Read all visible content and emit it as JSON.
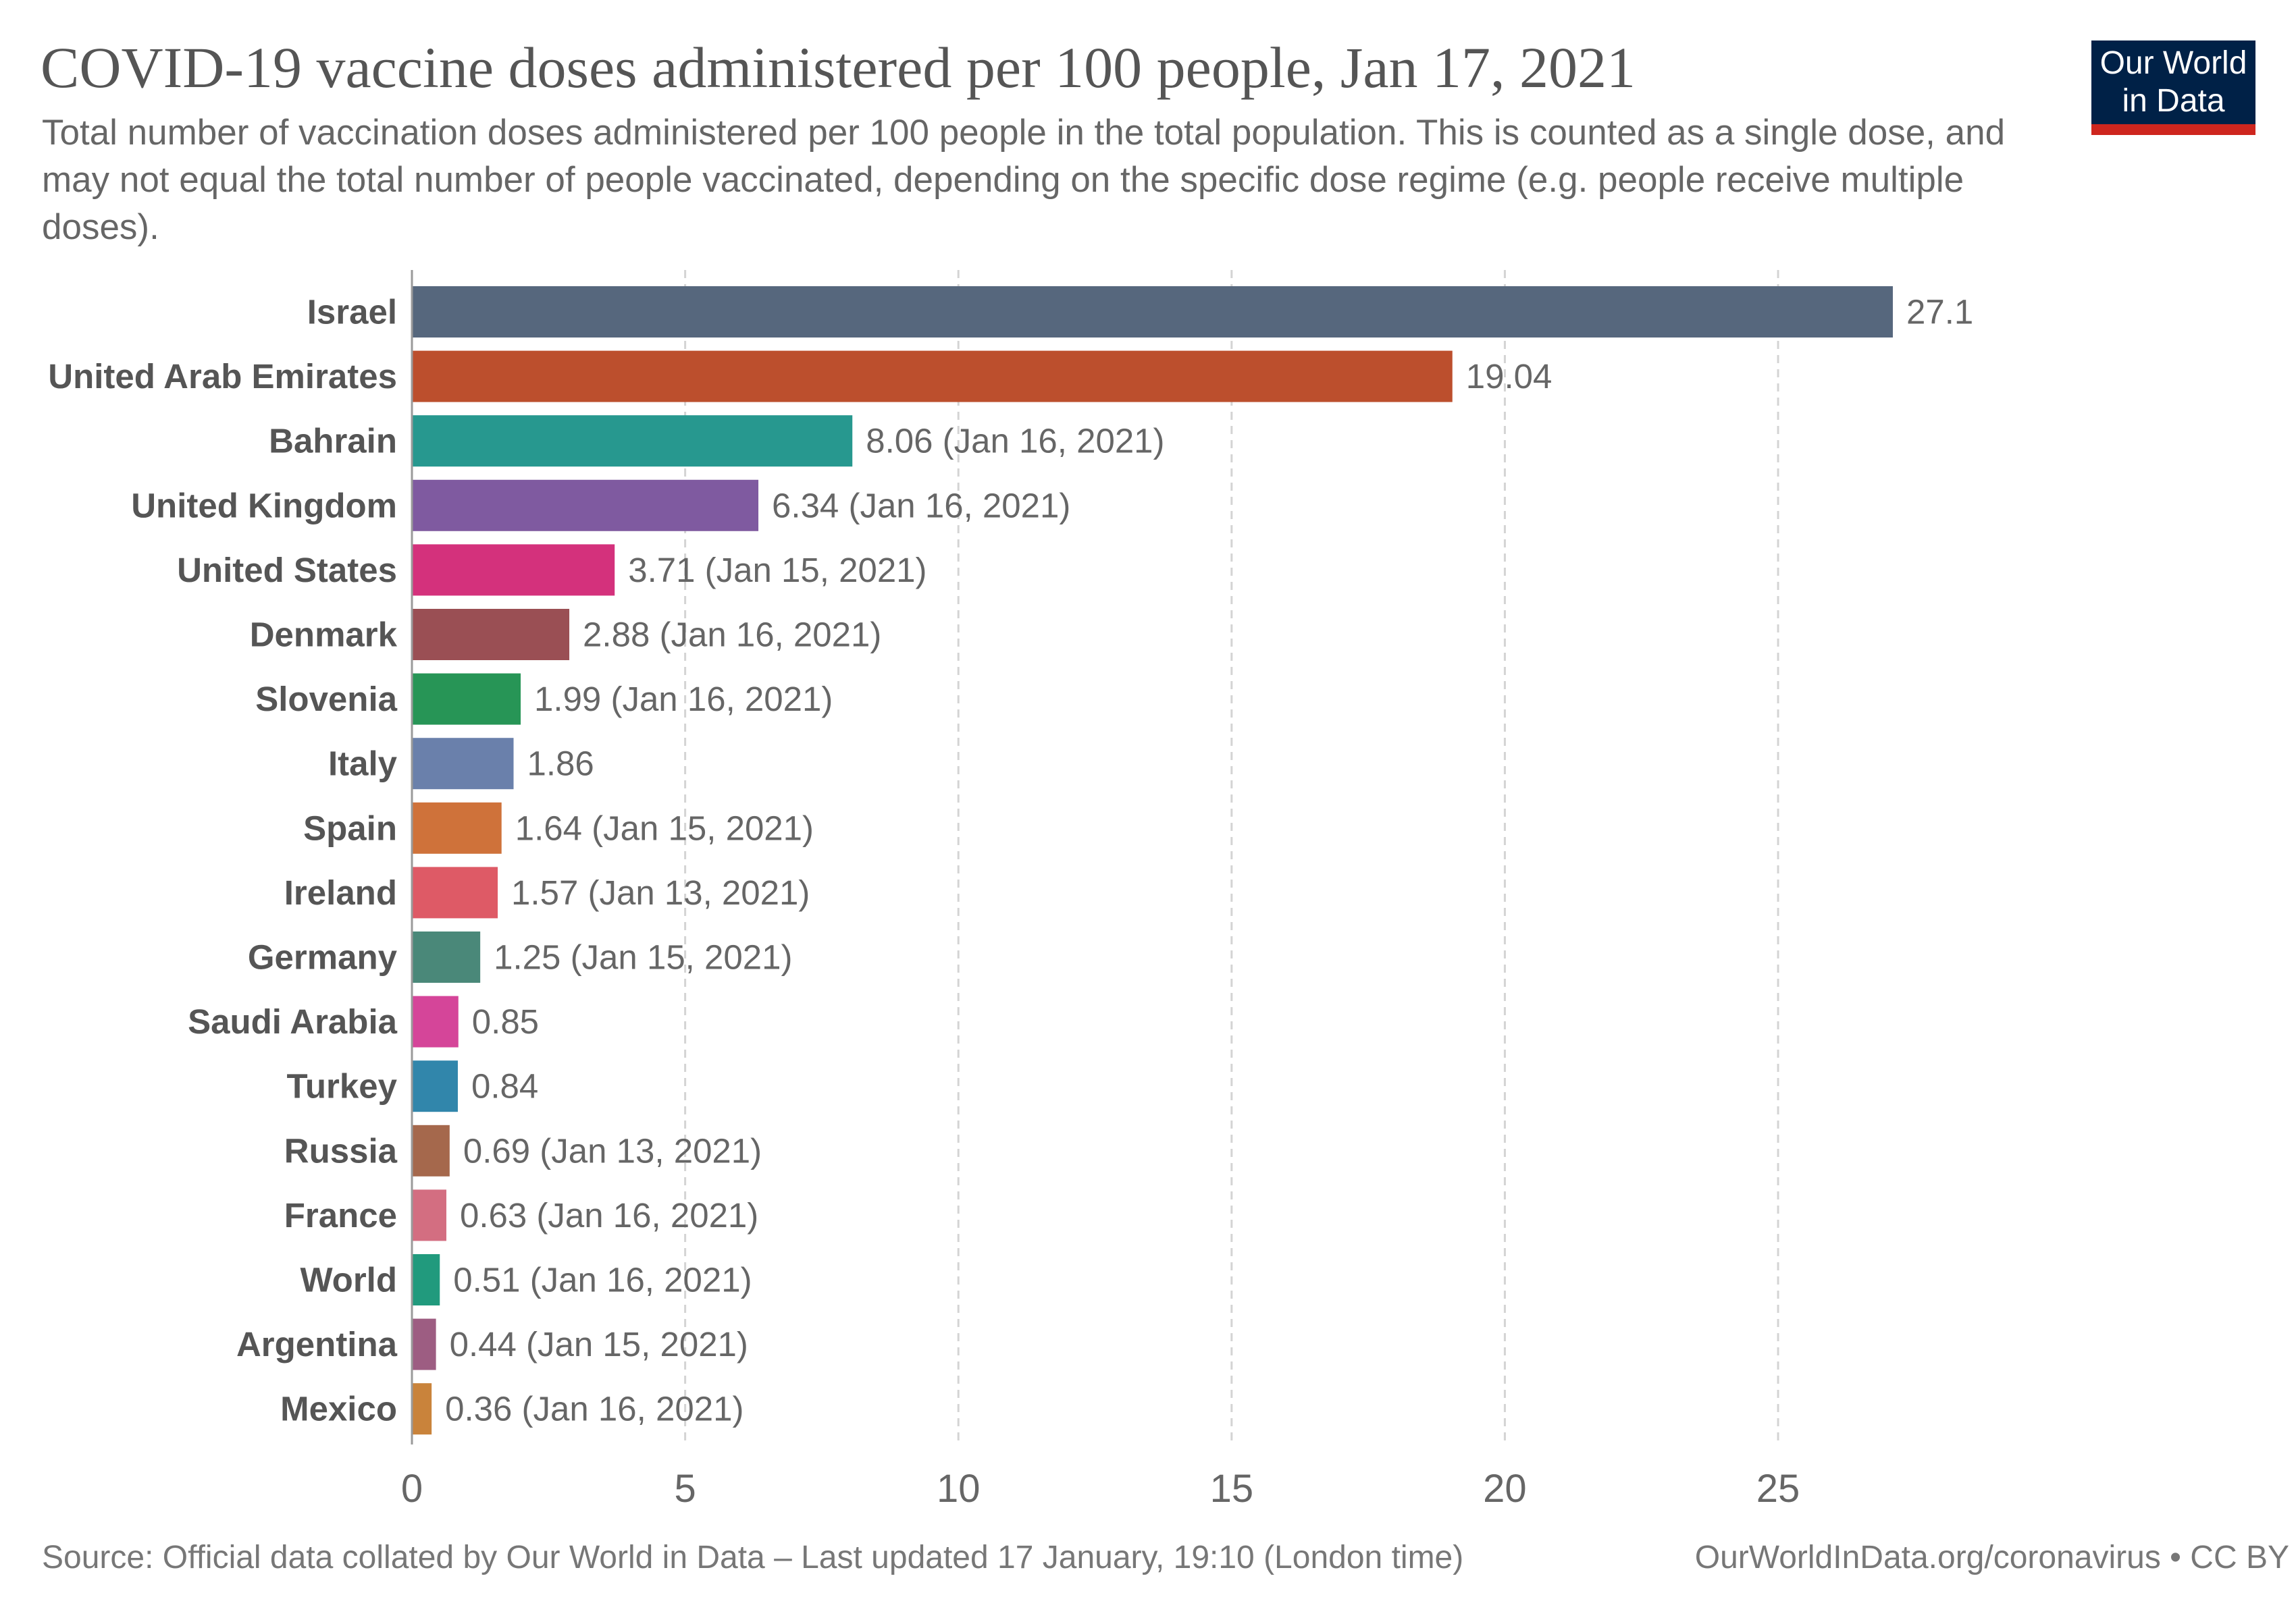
{
  "header": {
    "title": "COVID-19 vaccine doses administered per 100 people, Jan 17, 2021",
    "subtitle": "Total number of vaccination doses administered per 100 people in the total population. This is counted as a single dose, and may not equal the total number of people vaccinated, depending on the specific dose regime (e.g. people receive multiple doses)."
  },
  "logo": {
    "line1": "Our World",
    "line2": "in Data",
    "bg": "#002147",
    "accent": "#ce261e"
  },
  "footer": {
    "source": "Source: Official data collated by Our World in Data – Last updated 17 January, 19:10 (London time)",
    "link": "OurWorldInData.org/coronavirus • CC BY"
  },
  "chart_data": {
    "type": "bar",
    "orientation": "horizontal",
    "categories": [
      "Israel",
      "United Arab Emirates",
      "Bahrain",
      "United Kingdom",
      "United States",
      "Denmark",
      "Slovenia",
      "Italy",
      "Spain",
      "Ireland",
      "Germany",
      "Saudi Arabia",
      "Turkey",
      "Russia",
      "France",
      "World",
      "Argentina",
      "Mexico"
    ],
    "values": [
      27.1,
      19.04,
      8.06,
      6.34,
      3.71,
      2.88,
      1.99,
      1.86,
      1.64,
      1.57,
      1.25,
      0.85,
      0.84,
      0.69,
      0.63,
      0.51,
      0.44,
      0.36
    ],
    "value_labels": [
      "27.1",
      "19.04",
      "8.06 (Jan 16, 2021)",
      "6.34 (Jan 16, 2021)",
      "3.71 (Jan 15, 2021)",
      "2.88 (Jan 16, 2021)",
      "1.99 (Jan 16, 2021)",
      "1.86",
      "1.64 (Jan 15, 2021)",
      "1.57 (Jan 13, 2021)",
      "1.25 (Jan 15, 2021)",
      "0.85",
      "0.84",
      "0.69 (Jan 13, 2021)",
      "0.63 (Jan 16, 2021)",
      "0.51 (Jan 16, 2021)",
      "0.44 (Jan 15, 2021)",
      "0.36 (Jan 16, 2021)"
    ],
    "colors": [
      "#56677d",
      "#bc4f2d",
      "#27988f",
      "#7f5aa0",
      "#d4317c",
      "#9a4f54",
      "#279556",
      "#6a80ab",
      "#cf723a",
      "#de5a66",
      "#4a8879",
      "#d54599",
      "#3186ab",
      "#a5684c",
      "#d36e81",
      "#219a7d",
      "#9d5d82",
      "#c9833b"
    ],
    "xticks": [
      0,
      5,
      10,
      15,
      20,
      25
    ],
    "xlim": [
      0,
      28.2
    ],
    "grid": true
  }
}
